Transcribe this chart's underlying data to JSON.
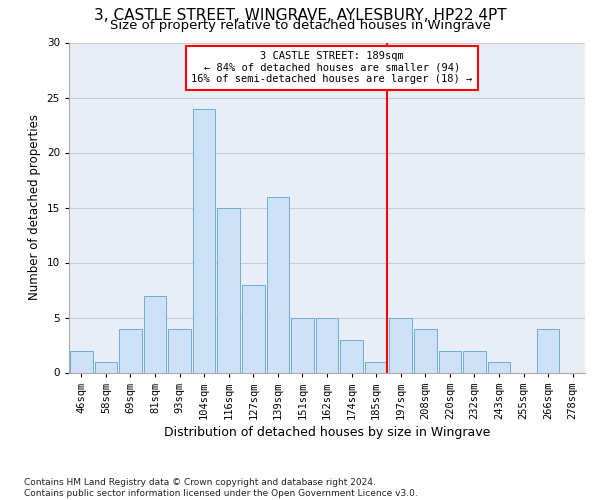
{
  "title1": "3, CASTLE STREET, WINGRAVE, AYLESBURY, HP22 4PT",
  "title2": "Size of property relative to detached houses in Wingrave",
  "xlabel": "Distribution of detached houses by size in Wingrave",
  "ylabel": "Number of detached properties",
  "footnote": "Contains HM Land Registry data © Crown copyright and database right 2024.\nContains public sector information licensed under the Open Government Licence v3.0.",
  "categories": [
    "46sqm",
    "58sqm",
    "69sqm",
    "81sqm",
    "93sqm",
    "104sqm",
    "116sqm",
    "127sqm",
    "139sqm",
    "151sqm",
    "162sqm",
    "174sqm",
    "185sqm",
    "197sqm",
    "208sqm",
    "220sqm",
    "232sqm",
    "243sqm",
    "255sqm",
    "266sqm",
    "278sqm"
  ],
  "values": [
    2,
    1,
    4,
    7,
    4,
    24,
    15,
    8,
    16,
    5,
    5,
    3,
    1,
    5,
    4,
    2,
    2,
    1,
    0,
    4,
    0
  ],
  "bar_color": "#cde0f5",
  "bar_edge_color": "#6aaed6",
  "vline_x_index": 12,
  "vline_color": "red",
  "annotation_line1": "3 CASTLE STREET: 189sqm",
  "annotation_line2": "← 84% of detached houses are smaller (94)",
  "annotation_line3": "16% of semi-detached houses are larger (18) →",
  "ylim": [
    0,
    30
  ],
  "yticks": [
    0,
    5,
    10,
    15,
    20,
    25,
    30
  ],
  "grid_color": "#cccccc",
  "bg_color": "#e8eef8",
  "title1_fontsize": 11,
  "title2_fontsize": 9.5,
  "ylabel_fontsize": 8.5,
  "xlabel_fontsize": 9,
  "tick_fontsize": 7.5,
  "footnote_fontsize": 6.5,
  "annot_fontsize": 7.5
}
